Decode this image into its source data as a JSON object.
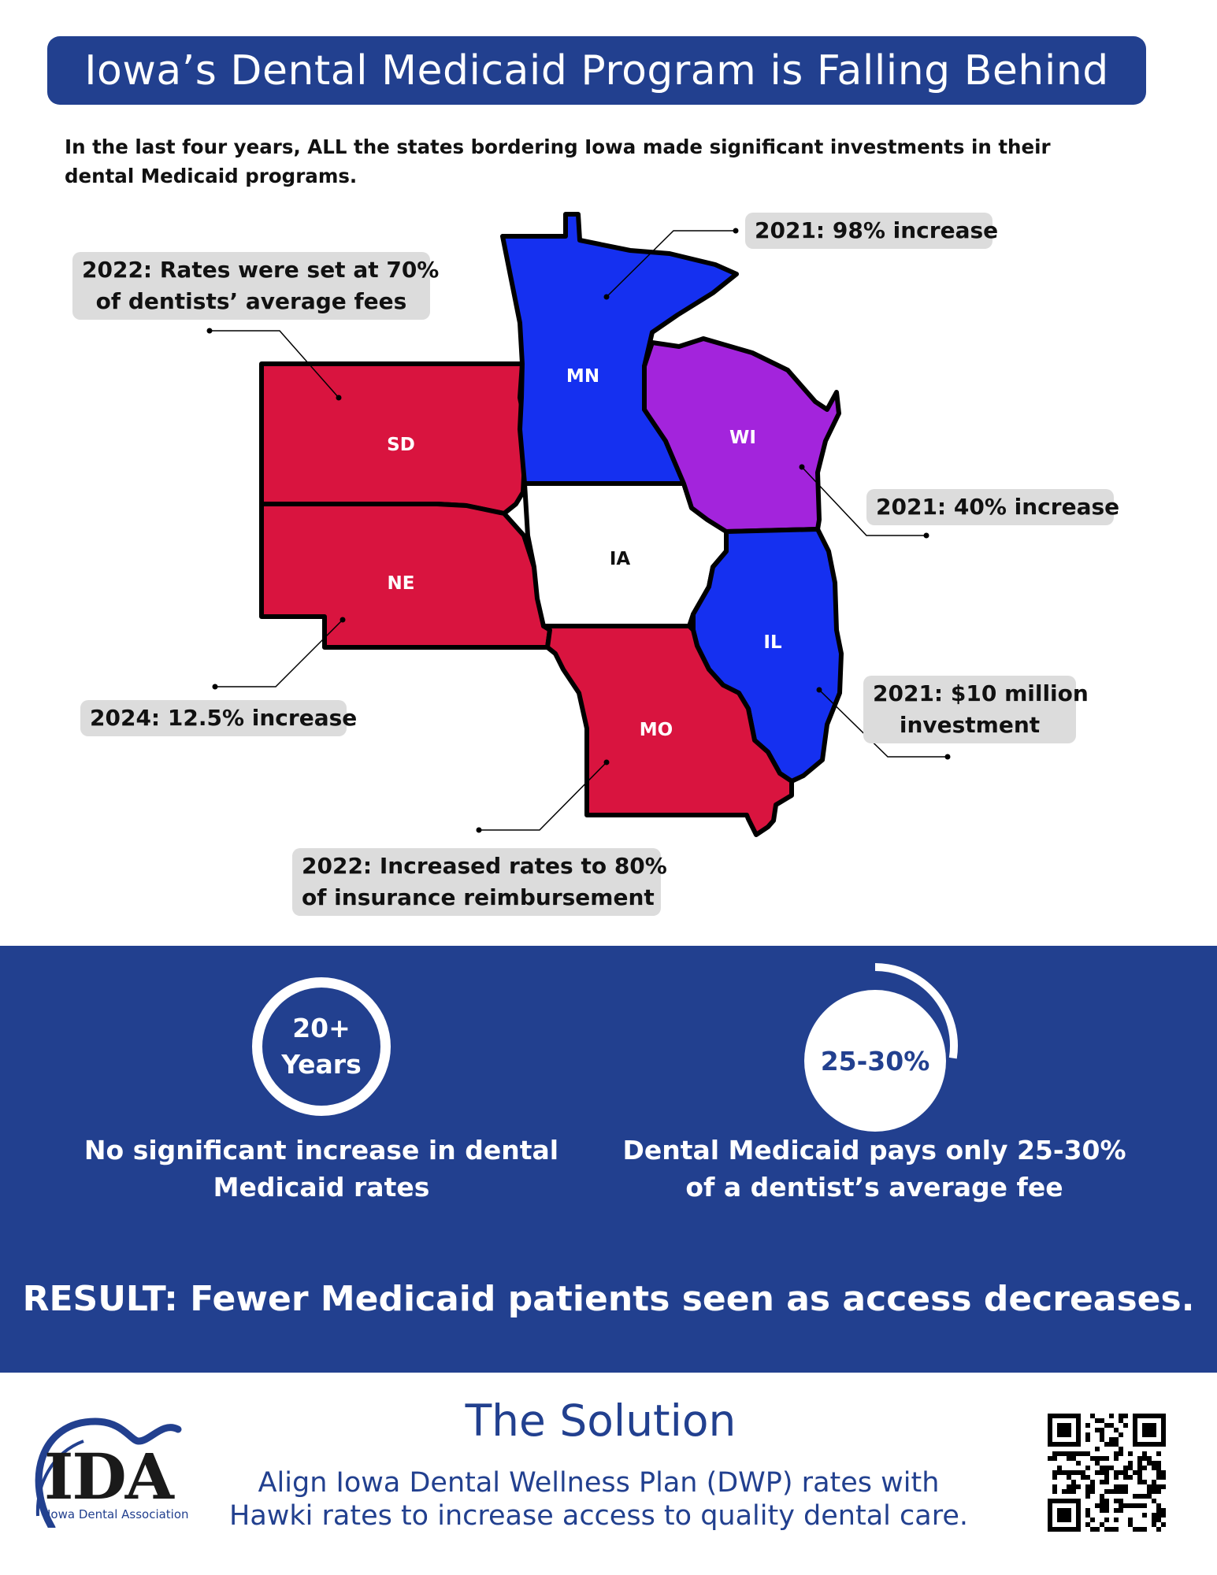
{
  "title": "Iowa’s Dental Medicaid Program is Falling Behind",
  "intro": "In the last four years, ALL the states bordering Iowa made significant investments in their dental Medicaid programs.",
  "colors": {
    "brand_blue": "#22408f",
    "state_red": "#d9143f",
    "state_blue": "#1530f0",
    "state_purple": "#a324dc",
    "callout_gray": "#dcdcdc"
  },
  "map": {
    "states": [
      {
        "abbr": "SD",
        "color": "red"
      },
      {
        "abbr": "MN",
        "color": "blue"
      },
      {
        "abbr": "WI",
        "color": "purple"
      },
      {
        "abbr": "IA",
        "color": "white"
      },
      {
        "abbr": "NE",
        "color": "red"
      },
      {
        "abbr": "IL",
        "color": "blue"
      },
      {
        "abbr": "MO",
        "color": "red"
      }
    ],
    "callouts": {
      "sd": [
        "2022: Rates were set at 70%",
        "of dentists’ average fees"
      ],
      "mn": [
        "2021: 98% increase"
      ],
      "wi": [
        "2021: 40% increase"
      ],
      "ne": [
        "2024: 12.5% increase"
      ],
      "il": [
        "2021: $10 million",
        "investment"
      ],
      "mo": [
        "2022: Increased rates to 80%",
        "of insurance reimbursement"
      ]
    }
  },
  "stats": [
    {
      "ring_lines": [
        "20+",
        "Years"
      ],
      "description": [
        "No significant increase in dental",
        "Medicaid rates"
      ]
    },
    {
      "ring_lines": [
        "25-30%"
      ],
      "ring_fill_fraction": 0.275,
      "description": [
        "Dental Medicaid pays only 25-30%",
        "of a dentist’s average fee"
      ]
    }
  ],
  "result": "RESULT: Fewer Medicaid patients seen as access decreases.",
  "solution": {
    "title": "The Solution",
    "text": [
      "Align Iowa Dental Wellness Plan (DWP) rates with",
      "Hawki rates to increase access to quality dental care."
    ]
  },
  "logo": {
    "letters": "IDA",
    "subtitle": "Iowa Dental Association"
  }
}
